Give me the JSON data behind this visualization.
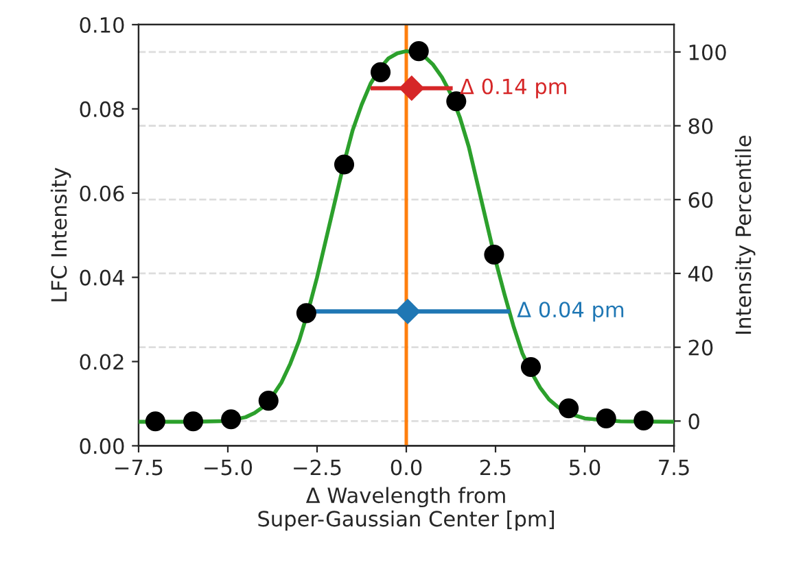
{
  "chart_data": {
    "type": "scatter",
    "xlabel": "Δ Wavelength from\nSuper-Gaussian Center [pm]",
    "ylabel": "LFC Intensity",
    "y2label": "Intensity Percentile",
    "xlim": [
      -7.5,
      7.5
    ],
    "xticks": [
      {
        "value": -7.5,
        "label": "−7.5"
      },
      {
        "value": -5.0,
        "label": "−5.0"
      },
      {
        "value": -2.5,
        "label": "−2.5"
      },
      {
        "value": 0.0,
        "label": "0.0"
      },
      {
        "value": 2.5,
        "label": "2.5"
      },
      {
        "value": 5.0,
        "label": "5.0"
      },
      {
        "value": 7.5,
        "label": "7.5"
      }
    ],
    "ylim": [
      0,
      0.1
    ],
    "yticks": [
      {
        "value": 0,
        "label": "0.00"
      },
      {
        "value": 0.02,
        "label": "0.02"
      },
      {
        "value": 0.04,
        "label": "0.04"
      },
      {
        "value": 0.06,
        "label": "0.06"
      },
      {
        "value": 0.08,
        "label": "0.08"
      },
      {
        "value": 0.1,
        "label": "0.10"
      }
    ],
    "y2lim": [
      -6.7,
      107.4
    ],
    "y2ticks": [
      0,
      20,
      40,
      60,
      80,
      100
    ],
    "grid": "y2",
    "legend": false,
    "ref_lines": [
      {
        "axis": "x",
        "value": 0.0,
        "color": "#ff7f0e"
      }
    ],
    "series": [
      {
        "type": "line",
        "color": "#2ca02c",
        "marker": "none",
        "x": [
          -7.5,
          -6,
          -5,
          -4.5,
          -4.25,
          -4,
          -3.75,
          -3.5,
          -3.25,
          -3,
          -2.75,
          -2.5,
          -2.25,
          -2,
          -1.75,
          -1.5,
          -1.25,
          -1,
          -0.75,
          -0.5,
          -0.25,
          0,
          0.25,
          0.5,
          0.75,
          1,
          1.25,
          1.5,
          1.75,
          2,
          2.25,
          2.5,
          2.75,
          3,
          3.25,
          3.5,
          3.75,
          4,
          4.25,
          4.5,
          5,
          6,
          7.5
        ],
        "values": [
          0.0057,
          0.0057,
          0.0059,
          0.0068,
          0.0078,
          0.0093,
          0.0118,
          0.015,
          0.0195,
          0.025,
          0.032,
          0.04,
          0.049,
          0.058,
          0.067,
          0.075,
          0.081,
          0.086,
          0.0895,
          0.092,
          0.0932,
          0.0937,
          0.0935,
          0.0925,
          0.0905,
          0.0875,
          0.0835,
          0.078,
          0.071,
          0.062,
          0.053,
          0.044,
          0.036,
          0.0285,
          0.022,
          0.0175,
          0.0138,
          0.011,
          0.0092,
          0.0078,
          0.0065,
          0.0058,
          0.0057
        ]
      },
      {
        "color": "#000000",
        "marker": "circle",
        "x": [
          -7.03,
          -5.97,
          -4.91,
          -3.86,
          -2.8,
          -1.74,
          -0.72,
          0.35,
          1.4,
          2.46,
          3.49,
          4.55,
          5.6,
          6.65
        ],
        "values": [
          0.0058,
          0.0058,
          0.0063,
          0.0107,
          0.0315,
          0.0668,
          0.0887,
          0.0937,
          0.0818,
          0.0454,
          0.0187,
          0.0089,
          0.0065,
          0.006
        ]
      },
      {
        "name": "Δ 0.14 pm",
        "color": "#d62728",
        "marker": "diamond",
        "x": [
          0.15
        ],
        "values": [
          0.0849
        ],
        "xerrors": [
          1.15
        ]
      },
      {
        "name": "Δ 0.04 pm",
        "color": "#1f77b4",
        "marker": "diamond",
        "x": [
          0.04
        ],
        "values": [
          0.0319
        ],
        "xerrors": [
          2.86
        ]
      }
    ]
  }
}
